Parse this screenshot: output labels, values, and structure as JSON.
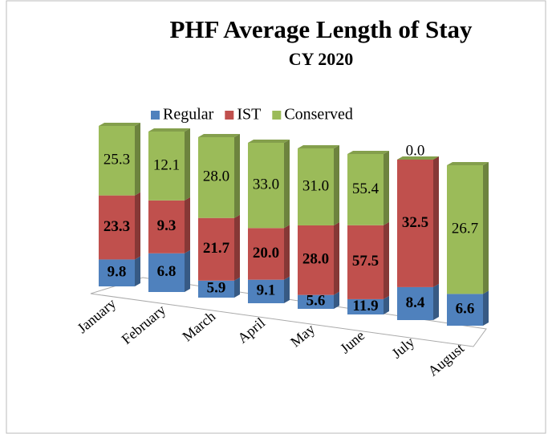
{
  "chart_data": {
    "type": "bar",
    "stacking": "percent",
    "title": "PHF Average Length of Stay",
    "subtitle": "CY 2020",
    "categories": [
      "January",
      "February",
      "March",
      "April",
      "May",
      "June",
      "July",
      "August"
    ],
    "series": [
      {
        "name": "Regular",
        "color": "#4f81bd",
        "bold": true,
        "values": [
          9.8,
          6.8,
          5.9,
          9.1,
          5.6,
          11.9,
          8.4,
          6.6
        ],
        "value_labels": [
          "9.8",
          "6.8",
          "5.9",
          "9.1",
          "5.6",
          "11.9",
          "8.4",
          "6.6"
        ]
      },
      {
        "name": "IST",
        "color": "#c0504d",
        "bold": true,
        "values": [
          23.3,
          9.3,
          21.7,
          20.0,
          28.0,
          57.5,
          32.5,
          0.0
        ],
        "value_labels": [
          "23.3",
          "9.3",
          "21.7",
          "20.0",
          "28.0",
          "57.5",
          "32.5",
          "0.0"
        ]
      },
      {
        "name": "Conserved",
        "color": "#9bbb59",
        "bold": false,
        "values": [
          25.3,
          12.1,
          28.0,
          33.0,
          31.0,
          55.4,
          0.0,
          26.7
        ],
        "value_labels": [
          "25.3",
          "12.1",
          "28.0",
          "33.0",
          "31.0",
          "55.4",
          "0.0",
          "26.7"
        ]
      }
    ],
    "legend": "top"
  }
}
